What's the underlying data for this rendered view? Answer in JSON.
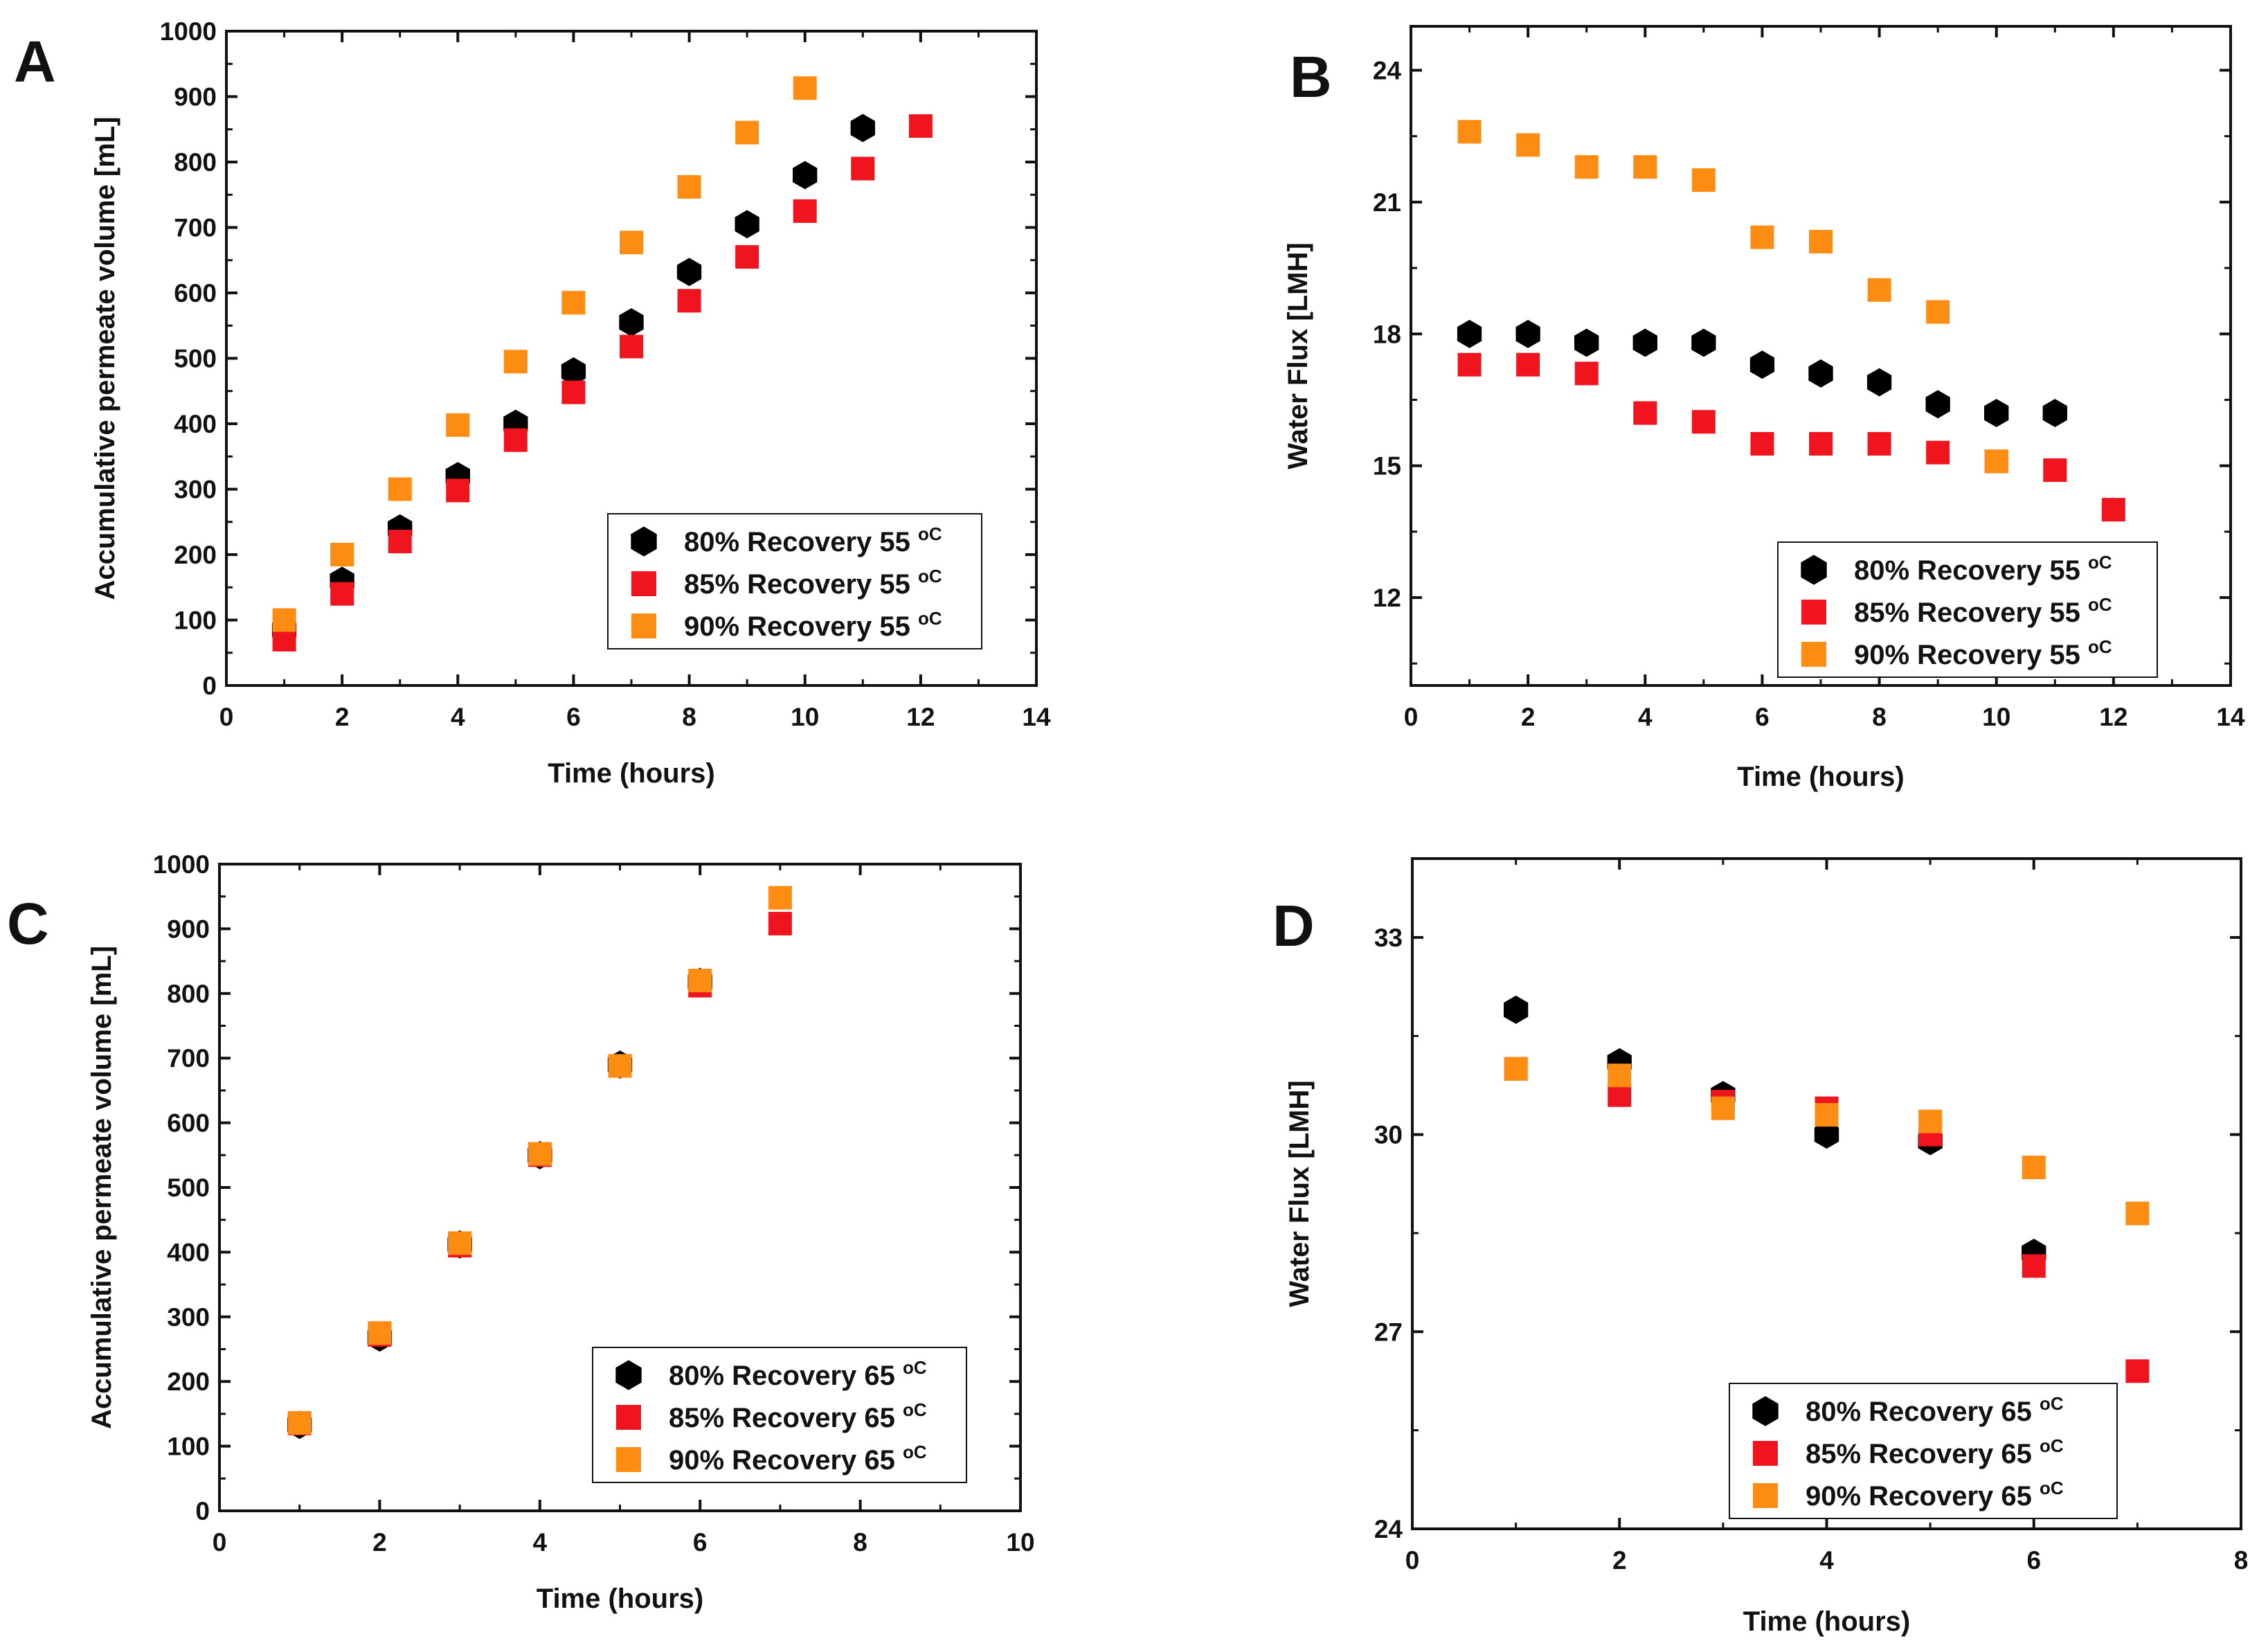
{
  "chart_data": [
    {
      "panel": "A",
      "type": "scatter",
      "xlabel": "Time (hours)",
      "ylabel": "Accumulative permeate volume [mL]",
      "xlim": [
        0,
        14
      ],
      "ylim": [
        0,
        1000
      ],
      "xticks": [
        0,
        2,
        4,
        6,
        8,
        10,
        12,
        14
      ],
      "yticks": [
        0,
        100,
        200,
        300,
        400,
        500,
        600,
        700,
        800,
        900,
        1000
      ],
      "legend_position": "bottom-right",
      "series": [
        {
          "name": "80% Recovery 55",
          "unit": "oC",
          "marker": "hexagon",
          "color": "#000000",
          "x": [
            1,
            2,
            3,
            4,
            5,
            6,
            7,
            8,
            9,
            10,
            11
          ],
          "y": [
            85,
            160,
            240,
            320,
            400,
            480,
            555,
            632,
            705,
            780,
            852
          ]
        },
        {
          "name": "85% Recovery 55",
          "unit": "oC",
          "marker": "square",
          "color": "#f0141e",
          "x": [
            1,
            2,
            3,
            4,
            5,
            6,
            7,
            8,
            9,
            10,
            11,
            12
          ],
          "y": [
            70,
            140,
            220,
            298,
            375,
            448,
            518,
            588,
            655,
            725,
            790,
            855
          ]
        },
        {
          "name": "90% Recovery 55",
          "unit": "oC",
          "marker": "square",
          "color": "#fd8c12",
          "x": [
            1,
            2,
            3,
            4,
            5,
            6,
            7,
            8,
            9,
            10
          ],
          "y": [
            100,
            200,
            300,
            398,
            495,
            585,
            677,
            762,
            845,
            913
          ]
        }
      ]
    },
    {
      "panel": "B",
      "type": "scatter",
      "xlabel": "Time (hours)",
      "ylabel": "Water Flux [LMH]",
      "xlim": [
        0,
        14
      ],
      "ylim": [
        10,
        25
      ],
      "xticks": [
        0,
        2,
        4,
        6,
        8,
        10,
        12,
        14
      ],
      "yticks": [
        12,
        15,
        18,
        21,
        24
      ],
      "legend_position": "bottom-right",
      "series": [
        {
          "name": "80% Recovery 55",
          "unit": "oC",
          "marker": "hexagon",
          "color": "#000000",
          "x": [
            1,
            2,
            3,
            4,
            5,
            6,
            7,
            8,
            9,
            10,
            11
          ],
          "y": [
            18.0,
            18.0,
            17.8,
            17.8,
            17.8,
            17.3,
            17.1,
            16.9,
            16.4,
            16.2,
            16.2
          ]
        },
        {
          "name": "85% Recovery 55",
          "unit": "oC",
          "marker": "square",
          "color": "#f0141e",
          "x": [
            1,
            2,
            3,
            4,
            5,
            6,
            7,
            8,
            9,
            10,
            11,
            12
          ],
          "y": [
            17.3,
            17.3,
            17.1,
            16.2,
            16.0,
            15.5,
            15.5,
            15.5,
            15.3,
            15.1,
            14.9,
            14.0
          ]
        },
        {
          "name": "90% Recovery 55",
          "unit": "oC",
          "marker": "square",
          "color": "#fd8c12",
          "x": [
            1,
            2,
            3,
            4,
            5,
            6,
            7,
            8,
            9,
            10
          ],
          "y": [
            22.6,
            22.3,
            21.8,
            21.8,
            21.5,
            20.2,
            20.1,
            19.0,
            18.5,
            15.1
          ]
        }
      ]
    },
    {
      "panel": "C",
      "type": "scatter",
      "xlabel": "Time (hours)",
      "ylabel": "Accumulative permeate volume [mL]",
      "xlim": [
        0,
        10
      ],
      "ylim": [
        0,
        1000
      ],
      "xticks": [
        0,
        2,
        4,
        6,
        8,
        10
      ],
      "yticks": [
        0,
        100,
        200,
        300,
        400,
        500,
        600,
        700,
        800,
        900,
        1000
      ],
      "legend_position": "bottom-right",
      "series": [
        {
          "name": "80% Recovery 65",
          "unit": "oC",
          "marker": "hexagon",
          "color": "#000000",
          "x": [
            1,
            2,
            3,
            4,
            5,
            6
          ],
          "y": [
            133,
            268,
            412,
            550,
            690,
            818
          ]
        },
        {
          "name": "85% Recovery 65",
          "unit": "oC",
          "marker": "square",
          "color": "#f0141e",
          "x": [
            1,
            2,
            3,
            4,
            5,
            6,
            7
          ],
          "y": [
            135,
            272,
            410,
            550,
            688,
            812,
            908
          ]
        },
        {
          "name": "90% Recovery 65",
          "unit": "oC",
          "marker": "square",
          "color": "#fd8c12",
          "x": [
            1,
            2,
            3,
            4,
            5,
            6,
            7
          ],
          "y": [
            136,
            275,
            414,
            552,
            688,
            820,
            948
          ]
        }
      ]
    },
    {
      "panel": "D",
      "type": "scatter",
      "xlabel": "Time (hours)",
      "ylabel": "Water Flux [LMH]",
      "xlim": [
        0,
        8
      ],
      "ylim": [
        24,
        34.2
      ],
      "xticks": [
        0,
        2,
        4,
        6,
        8
      ],
      "yticks": [
        24,
        27,
        30,
        33
      ],
      "legend_position": "bottom-right",
      "series": [
        {
          "name": "80% Recovery 65",
          "unit": "oC",
          "marker": "hexagon",
          "color": "#000000",
          "x": [
            1,
            2,
            3,
            4,
            5,
            6
          ],
          "y": [
            31.9,
            31.1,
            30.6,
            30.0,
            29.9,
            28.2
          ]
        },
        {
          "name": "85% Recovery 65",
          "unit": "oC",
          "marker": "square",
          "color": "#f0141e",
          "x": [
            1,
            2,
            3,
            4,
            5,
            6,
            7
          ],
          "y": [
            31.0,
            30.6,
            30.5,
            30.4,
            30.0,
            28.0,
            26.4
          ]
        },
        {
          "name": "90% Recovery 65",
          "unit": "oC",
          "marker": "square",
          "color": "#fd8c12",
          "x": [
            1,
            2,
            3,
            4,
            5,
            6,
            7
          ],
          "y": [
            31.0,
            30.9,
            30.4,
            30.3,
            30.2,
            29.5,
            28.8
          ]
        }
      ]
    }
  ]
}
